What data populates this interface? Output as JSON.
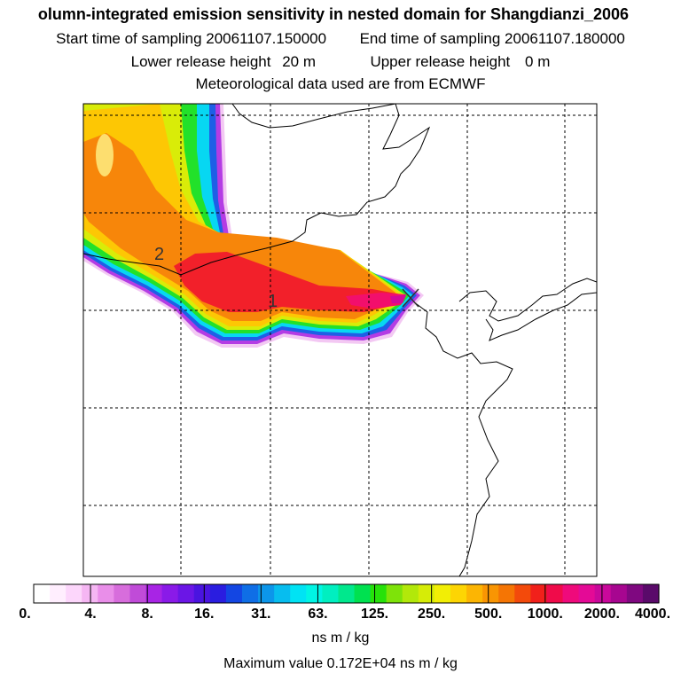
{
  "header": {
    "title": "olumn-integrated emission sensitivity in nested domain for Shangdianzi_2006",
    "start_label": "Start time of sampling",
    "start_value": "20061107.150000",
    "end_label": "End time of sampling",
    "end_value": "20061107.180000",
    "lower_label": "Lower release height",
    "lower_value": "20 m",
    "upper_label": "Upper release height",
    "upper_value": "0 m",
    "met_source": "Meteorological data used are from ECMWF"
  },
  "map": {
    "plume_labels": [
      "2",
      "1"
    ]
  },
  "colorbar": {
    "tick_labels": [
      "0.",
      "4.",
      "8.",
      "16.",
      "31.",
      "63.",
      "125.",
      "250.",
      "500.",
      "1000.",
      "2000.",
      "4000."
    ],
    "units": "ns m / kg",
    "colors": [
      "#ffffff",
      "#ffeefe",
      "#fcd6fb",
      "#f5b6f3",
      "#e98ee9",
      "#d76ddc",
      "#c04bd8",
      "#a824e5",
      "#8a1ae8",
      "#6b16e6",
      "#4a14e0",
      "#2a1de0",
      "#1346e3",
      "#0f6ee6",
      "#0c96ea",
      "#07bdef",
      "#00e3f4",
      "#00f5e4",
      "#00efc0",
      "#00e88d",
      "#00e150",
      "#26e10a",
      "#7ee309",
      "#b2e80a",
      "#d6ec07",
      "#f2ee05",
      "#fdd503",
      "#fcb503",
      "#f99503",
      "#f57504",
      "#f34a0b",
      "#f1201b",
      "#f00b4a",
      "#ef0a7b",
      "#e40a96",
      "#c9089b",
      "#a70690",
      "#7f0880",
      "#5a0a6a"
    ]
  },
  "max_value": {
    "label": "Maximum value",
    "value": "0.172E+04",
    "units": "ns m / kg"
  }
}
